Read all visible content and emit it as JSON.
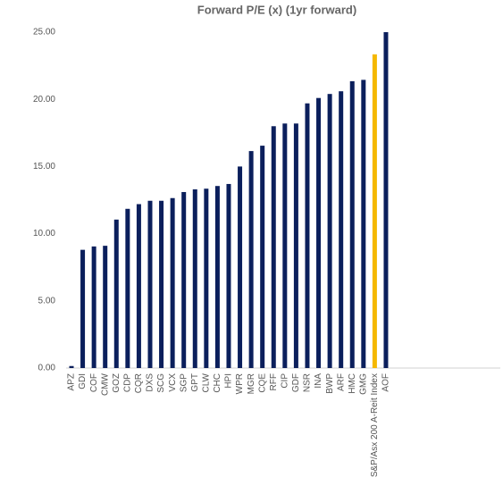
{
  "chart_data": {
    "type": "bar",
    "title": "Forward P/E (x) (1yr forward)",
    "categories": [
      "APZ",
      "GDI",
      "COF",
      "CMW",
      "GOZ",
      "CDP",
      "CQR",
      "DXS",
      "SCG",
      "VCX",
      "SGP",
      "GPT",
      "CLW",
      "CHC",
      "HPI",
      "WPR",
      "MGR",
      "CQE",
      "RFF",
      "CIP",
      "GDF",
      "NSR",
      "INA",
      "BWP",
      "ARF",
      "HMC",
      "GMG",
      "S&P/Asx 200 A-Reit Index",
      "AOF"
    ],
    "values": [
      0.15,
      8.8,
      9.05,
      9.1,
      11.05,
      11.85,
      12.2,
      12.45,
      12.45,
      12.65,
      13.1,
      13.3,
      13.35,
      13.55,
      13.7,
      15.0,
      16.15,
      16.55,
      18.0,
      18.2,
      18.2,
      19.7,
      20.1,
      20.4,
      20.6,
      21.35,
      21.45,
      23.35,
      25.0
    ],
    "colors": [
      "#0b1f5c",
      "#0b1f5c",
      "#0b1f5c",
      "#0b1f5c",
      "#0b1f5c",
      "#0b1f5c",
      "#0b1f5c",
      "#0b1f5c",
      "#0b1f5c",
      "#0b1f5c",
      "#0b1f5c",
      "#0b1f5c",
      "#0b1f5c",
      "#0b1f5c",
      "#0b1f5c",
      "#0b1f5c",
      "#0b1f5c",
      "#0b1f5c",
      "#0b1f5c",
      "#0b1f5c",
      "#0b1f5c",
      "#0b1f5c",
      "#0b1f5c",
      "#0b1f5c",
      "#0b1f5c",
      "#0b1f5c",
      "#0b1f5c",
      "#f5b800",
      "#0b1f5c"
    ],
    "ylim": [
      0,
      25
    ],
    "yticks": [
      {
        "value": 0,
        "label": "0.00"
      },
      {
        "value": 5,
        "label": "5.00"
      },
      {
        "value": 10,
        "label": "10.00"
      },
      {
        "value": 15,
        "label": "15.00"
      },
      {
        "value": 20,
        "label": "20.00"
      },
      {
        "value": 25,
        "label": "25.00"
      }
    ],
    "grid": false
  }
}
